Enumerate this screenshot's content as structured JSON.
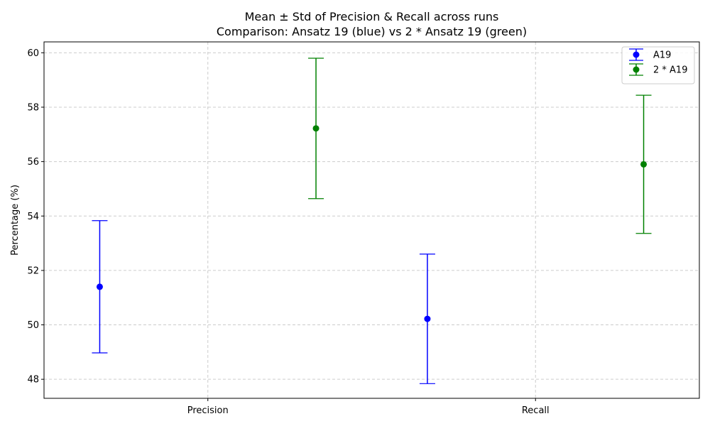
{
  "chart_data": {
    "type": "scatter",
    "title": "Mean ± Std of Precision & Recall across runs",
    "subtitle": "Comparison: Ansatz 19 (blue) vs 2 * Ansatz 19 (green)",
    "xlabel": "",
    "ylabel": "Percentage (%)",
    "categories": [
      "Precision",
      "Recall"
    ],
    "ylim": [
      47.3,
      60.4
    ],
    "yticks": [
      48,
      50,
      52,
      54,
      56,
      58,
      60
    ],
    "grid": true,
    "legend_position": "top-right",
    "series": [
      {
        "name": "A19",
        "color": "#0000ff",
        "offset": -0.33,
        "mean": [
          51.4,
          50.22
        ],
        "std": [
          2.43,
          2.38
        ]
      },
      {
        "name": "2 * A19",
        "color": "#008000",
        "offset": 0.33,
        "mean": [
          57.22,
          55.9
        ],
        "std": [
          2.58,
          2.54
        ]
      }
    ]
  }
}
